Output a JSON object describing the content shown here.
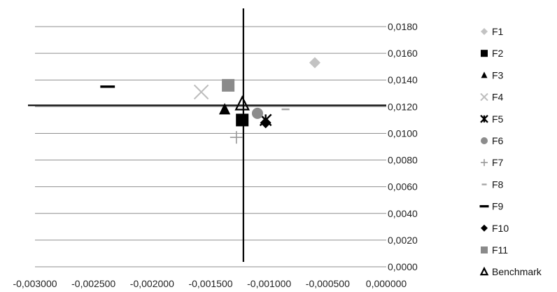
{
  "chart_data": {
    "type": "scatter",
    "title": "",
    "xlabel": "",
    "ylabel": "",
    "xlim": [
      -0.003,
      0.0
    ],
    "ylim": [
      0.0,
      0.018
    ],
    "grid": "horizontal",
    "legend_position": "right",
    "x_ticks": [
      -0.003,
      -0.0025,
      -0.002,
      -0.0015,
      -0.001,
      -0.0005,
      0.0
    ],
    "x_tick_labels": [
      "-0,003000",
      "-0,002500",
      "-0,002000",
      "-0,001500",
      "-0,001000",
      "-0,000500",
      "0,000000"
    ],
    "y_ticks": [
      0.0,
      0.002,
      0.004,
      0.006,
      0.008,
      0.01,
      0.012,
      0.014,
      0.016,
      0.018
    ],
    "y_tick_labels": [
      "0,0000",
      "0,0020",
      "0,0040",
      "0,0060",
      "0,0080",
      "0,0100",
      "0,0120",
      "0,0140",
      "0,0160",
      "0,0180"
    ],
    "reference_lines": {
      "vertical_x": -0.00122,
      "horizontal_y": 0.0121
    },
    "series": [
      {
        "name": "F1",
        "marker": "diamond",
        "color": "#c3c3c3",
        "x": -0.00061,
        "y": 0.0153
      },
      {
        "name": "F2",
        "marker": "square",
        "color": "#000000",
        "x": -0.00123,
        "y": 0.011
      },
      {
        "name": "F3",
        "marker": "triangle",
        "color": "#000000",
        "x": -0.00138,
        "y": 0.0118
      },
      {
        "name": "F4",
        "marker": "x",
        "color": "#bdbdbd",
        "x": -0.00158,
        "y": 0.0131
      },
      {
        "name": "F5",
        "marker": "asterisk",
        "color": "#000000",
        "x": -0.00103,
        "y": 0.011
      },
      {
        "name": "F6",
        "marker": "circle",
        "color": "#8c8c8c",
        "x": -0.0011,
        "y": 0.0115
      },
      {
        "name": "F7",
        "marker": "plus",
        "color": "#9a9a9a",
        "x": -0.00128,
        "y": 0.0097
      },
      {
        "name": "F8",
        "marker": "short-dash",
        "color": "#a6a6a6",
        "x": -0.00086,
        "y": 0.0118
      },
      {
        "name": "F9",
        "marker": "long-dash",
        "color": "#000000",
        "x": -0.00238,
        "y": 0.0135
      },
      {
        "name": "F10",
        "marker": "diamond",
        "color": "#000000",
        "x": -0.00103,
        "y": 0.0108
      },
      {
        "name": "F11",
        "marker": "square",
        "color": "#8a8a8a",
        "x": -0.00135,
        "y": 0.0136
      },
      {
        "name": "Benchmark",
        "marker": "triangle-open",
        "color": "#000000",
        "x": -0.00123,
        "y": 0.0122
      }
    ],
    "legend_marker_symbols": {
      "F1": "◆",
      "F2": "■",
      "F3": "▲",
      "F4": "×",
      "F5": "✱",
      "F6": "●",
      "F7": "+",
      "F8": "-",
      "F9": "–",
      "F10": "◆",
      "F11": "■",
      "Benchmark": "△"
    }
  }
}
